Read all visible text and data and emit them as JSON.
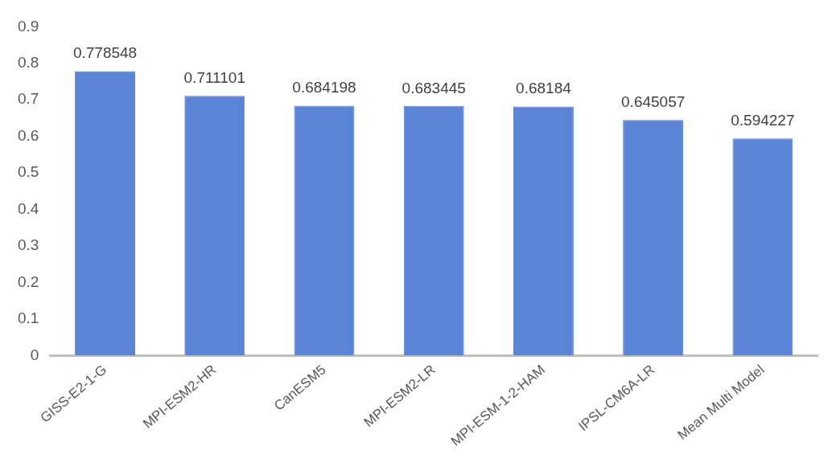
{
  "chart_data": {
    "type": "bar",
    "categories": [
      "GISS-E2-1-G",
      "MPI-ESM2-HR",
      "CanESM5",
      "MPI-ESM2-LR",
      "MPI-ESM-1-2-HAM",
      "IPSL-CM6A-LR",
      "Mean Multi Model"
    ],
    "values": [
      0.778548,
      0.711101,
      0.684198,
      0.683445,
      0.68184,
      0.645057,
      0.594227
    ],
    "color": "#5b84d6",
    "ylim": [
      0,
      0.9
    ],
    "yticks": [
      0,
      0.1,
      0.2,
      0.3,
      0.4,
      0.5,
      0.6,
      0.7,
      0.8,
      0.9
    ],
    "grid": false,
    "legend": false,
    "data_labels": true
  }
}
